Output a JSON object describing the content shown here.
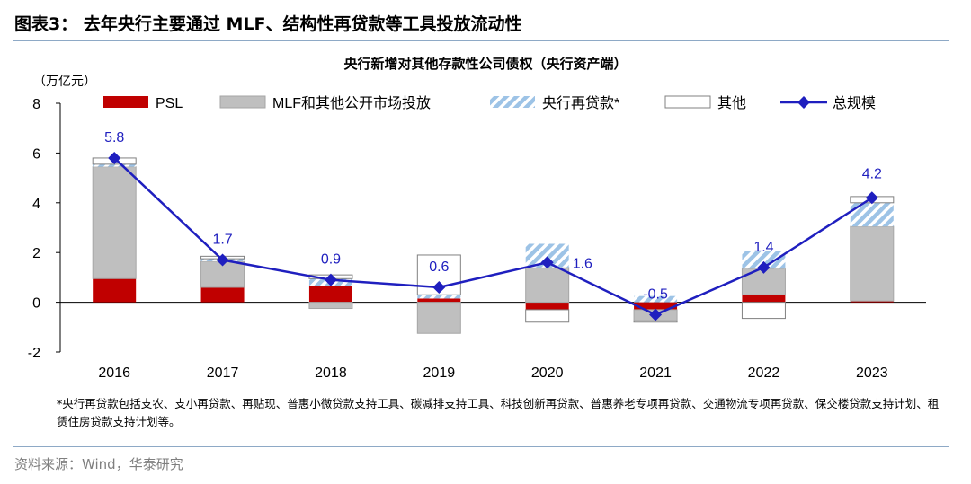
{
  "figure": {
    "title": "图表3：  去年央行主要通过 MLF、结构性再贷款等工具投放流动性",
    "footnote": "*央行再贷款包括支农、支小再贷款、再贴现、普惠小微贷款支持工具、碳减排支持工具、科技创新再贷款、普惠养老专项再贷款、交通物流专项再贷款、保交楼贷款支持计划、租赁住房贷款支持计划等。",
    "source": "资料来源：Wind，华泰研究"
  },
  "chart_data": {
    "type": "bar",
    "stacked": true,
    "title": "央行新增对其他存款性公司债权（央行资产端）",
    "unit_label": "（万亿元）",
    "categories": [
      "2016",
      "2017",
      "2018",
      "2019",
      "2020",
      "2021",
      "2022",
      "2023"
    ],
    "ylim": [
      -2,
      8
    ],
    "yticks": [
      -2,
      0,
      2,
      4,
      6,
      8
    ],
    "series": [
      {
        "name": "PSL",
        "kind": "bar",
        "color": "#c00000",
        "pattern": "solid",
        "values": [
          0.95,
          0.6,
          0.65,
          0.15,
          -0.3,
          -0.3,
          0.3,
          0.05
        ]
      },
      {
        "name": "MLF和其他公开市场投放",
        "kind": "bar",
        "color": "#bfbfbf",
        "pattern": "solid",
        "values": [
          4.5,
          1.05,
          -0.25,
          -1.25,
          1.4,
          -0.45,
          1.05,
          3.0
        ]
      },
      {
        "name": "央行再贷款*",
        "kind": "bar",
        "color": "#9dc3e6",
        "pattern": "hatch",
        "values": [
          0.1,
          0.1,
          0.3,
          0.15,
          0.95,
          0.25,
          0.7,
          0.95
        ]
      },
      {
        "name": "其他",
        "kind": "bar",
        "color": "#ffffff",
        "pattern": "outline",
        "values": [
          0.25,
          0.1,
          0.15,
          1.6,
          -0.5,
          -0.05,
          -0.65,
          0.25
        ]
      },
      {
        "name": "总规模",
        "kind": "line",
        "color": "#1f1fbf",
        "marker": "diamond",
        "values": [
          5.8,
          1.7,
          0.9,
          0.6,
          1.6,
          -0.5,
          1.4,
          4.2
        ],
        "labels": [
          "5.8",
          "1.7",
          "0.9",
          "0.6",
          "1.6",
          "-0.5",
          "1.4",
          "4.2"
        ]
      }
    ],
    "legend_position": "top",
    "grid": false
  }
}
